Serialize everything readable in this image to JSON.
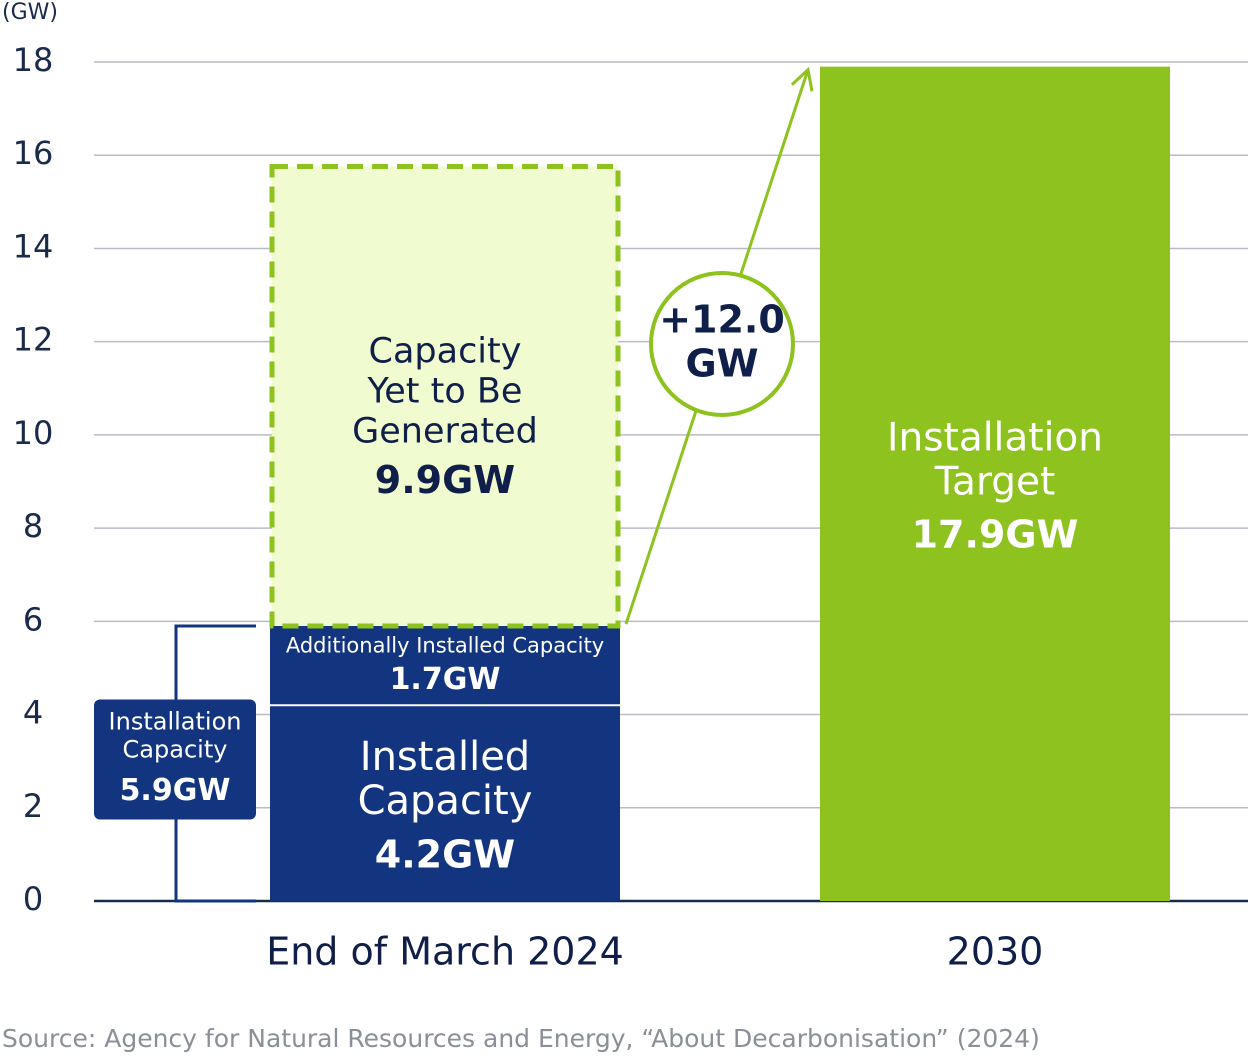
{
  "chart_data": {
    "type": "bar",
    "unit_label": "(GW)",
    "ylim": [
      0,
      18
    ],
    "yticks": [
      0,
      2,
      4,
      6,
      8,
      10,
      12,
      14,
      16,
      18
    ],
    "categories": [
      "End of March 2024",
      "2030"
    ],
    "series": [
      {
        "name": "Installed Capacity",
        "category": "End of March 2024",
        "base": 0,
        "value": 4.2,
        "label_lines": [
          "Installed",
          "Capacity"
        ],
        "value_label": "4.2GW",
        "color": "#13357f"
      },
      {
        "name": "Additionally Installed Capacity",
        "category": "End of March 2024",
        "base": 4.2,
        "value": 1.7,
        "label_lines": [
          "Additionally Installed Capacity"
        ],
        "value_label": "1.7GW",
        "color": "#13357f"
      },
      {
        "name": "Capacity Yet to Be Generated",
        "category": "End of March 2024",
        "base": 5.9,
        "value": 9.9,
        "label_lines": [
          "Capacity",
          "Yet to Be",
          "Generated"
        ],
        "value_label": "9.9GW",
        "color": "#f0fcd0",
        "border": "#8dc21f",
        "dashed": true
      },
      {
        "name": "Installation Target",
        "category": "2030",
        "base": 0,
        "value": 17.9,
        "label_lines": [
          "Installation",
          "Target"
        ],
        "value_label": "17.9GW",
        "color": "#8dc21f"
      }
    ],
    "bracket": {
      "label_lines": [
        "Installation",
        "Capacity"
      ],
      "value_label": "5.9GW",
      "from": 0,
      "to": 5.9
    },
    "annotation": {
      "label_lines": [
        "+12.0",
        "GW"
      ],
      "from_value": 5.9,
      "to_value": 17.9
    },
    "colors": {
      "navy": "#13357f",
      "green": "#8dc21f",
      "light_green": "#f0fcd0",
      "grid": "#b8bcc4",
      "text": "#0f1f4a"
    }
  },
  "source": "Source: Agency for Natural Resources and Energy, “About Decarbonisation” (2024)"
}
